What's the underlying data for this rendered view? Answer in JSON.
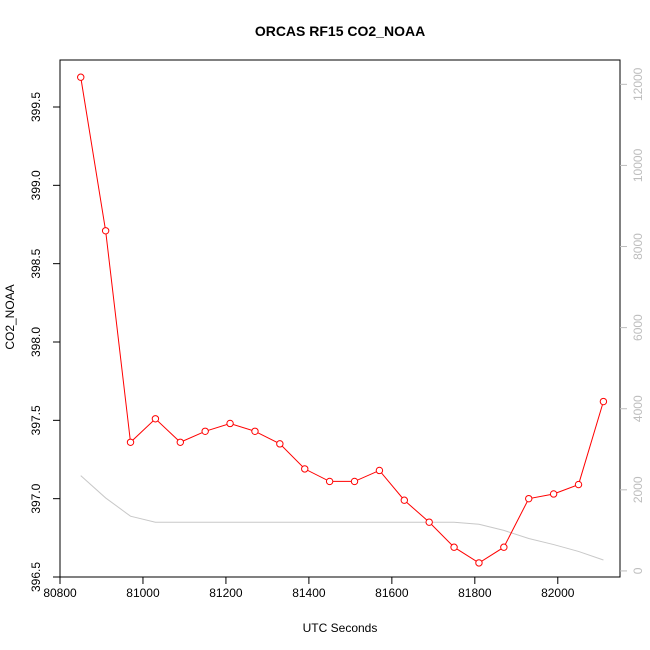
{
  "chart_data": {
    "type": "line",
    "title": "ORCAS RF15 CO2_NOAA",
    "xlabel": "UTC Seconds",
    "ylabel": "CO2_NOAA",
    "xlim": [
      80800,
      82150
    ],
    "ylim": [
      396.5,
      399.8
    ],
    "y2lim": [
      -150,
      12600
    ],
    "grid": false,
    "x_ticks": [
      80800,
      81000,
      81200,
      81400,
      81600,
      81800,
      82000
    ],
    "y_ticks": [
      396.5,
      397.0,
      397.5,
      398.0,
      398.5,
      399.0,
      399.5
    ],
    "y2_ticks": [
      0,
      2000,
      4000,
      6000,
      8000,
      10000,
      12000
    ],
    "colors": {
      "series": "#ff0000",
      "secondary": "#c8c8c8",
      "right_axis": "#bdbdbd"
    },
    "series": [
      {
        "axis": "left",
        "style": "line-with-open-circles",
        "x": [
          80850,
          80910,
          80970,
          81030,
          81090,
          81150,
          81210,
          81270,
          81330,
          81390,
          81450,
          81510,
          81570,
          81630,
          81690,
          81750,
          81810,
          81870,
          81930,
          81990,
          82050,
          82110
        ],
        "values": [
          399.69,
          398.71,
          397.36,
          397.51,
          397.36,
          397.43,
          397.48,
          397.43,
          397.35,
          397.19,
          397.11,
          397.11,
          397.18,
          396.99,
          396.85,
          396.69,
          396.59,
          396.69,
          397.0,
          397.03,
          397.09,
          397.62
        ]
      },
      {
        "axis": "right",
        "style": "line",
        "x": [
          80850,
          80910,
          80970,
          81030,
          81090,
          81150,
          81210,
          81270,
          81330,
          81390,
          81450,
          81510,
          81570,
          81630,
          81690,
          81750,
          81810,
          81870,
          81930,
          81990,
          82050,
          82110
        ],
        "values": [
          2350,
          1800,
          1350,
          1200,
          1200,
          1200,
          1200,
          1200,
          1200,
          1200,
          1200,
          1200,
          1200,
          1200,
          1200,
          1200,
          1150,
          1000,
          800,
          650,
          480,
          270
        ]
      }
    ]
  }
}
